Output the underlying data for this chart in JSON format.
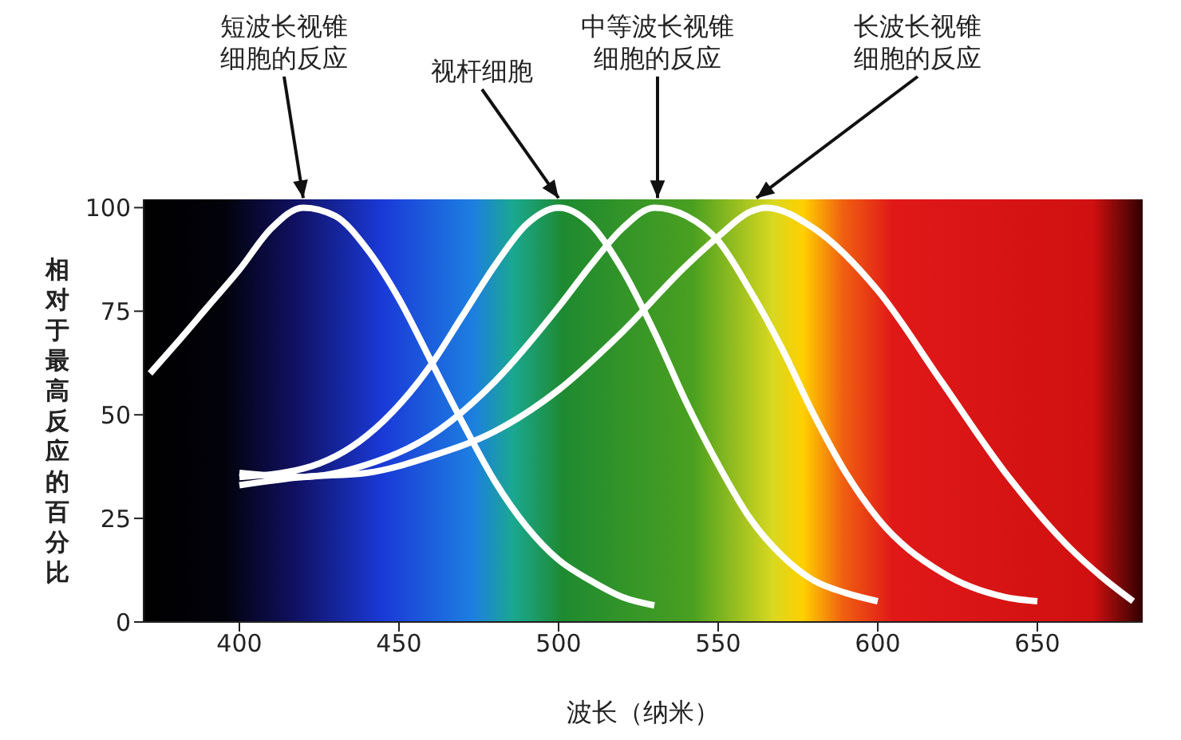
{
  "chart_data": {
    "type": "line",
    "xlabel": "波长（纳米）",
    "ylabel": "相对于最高反应的百分比",
    "xlim": [
      370,
      683
    ],
    "ylim": [
      0,
      102
    ],
    "xticks": [
      400,
      450,
      500,
      550,
      600,
      650
    ],
    "yticks": [
      0,
      25,
      50,
      75,
      100
    ],
    "grid": false,
    "legend": false,
    "marker": "none",
    "line_style": "solid",
    "series": [
      {
        "color": "#ffffff",
        "x": [
          372,
          380,
          390,
          400,
          410,
          420,
          430,
          440,
          450,
          460,
          470,
          480,
          490,
          500,
          510,
          520,
          530
        ],
        "values": [
          60,
          67,
          76,
          85,
          95,
          100,
          98,
          90,
          78,
          63,
          48,
          34,
          23,
          15,
          10,
          6,
          4
        ]
      },
      {
        "color": "#ffffff",
        "x": [
          400,
          420,
          440,
          460,
          470,
          480,
          490,
          500,
          510,
          520,
          530,
          540,
          550,
          560,
          570,
          580,
          590,
          600
        ],
        "values": [
          35,
          37,
          45,
          62,
          74,
          86,
          96,
          100,
          96,
          85,
          70,
          53,
          38,
          25,
          16,
          10,
          7,
          5
        ]
      },
      {
        "color": "#ffffff",
        "x": [
          400,
          420,
          440,
          460,
          480,
          500,
          510,
          520,
          530,
          540,
          550,
          560,
          570,
          580,
          590,
          600,
          620,
          640,
          650
        ],
        "values": [
          36,
          35,
          38,
          45,
          58,
          76,
          86,
          95,
          100,
          98,
          92,
          80,
          66,
          50,
          36,
          25,
          12,
          6,
          5
        ]
      },
      {
        "color": "#ffffff",
        "x": [
          400,
          420,
          440,
          460,
          480,
          500,
          520,
          540,
          550,
          560,
          565,
          580,
          600,
          620,
          640,
          660,
          670,
          680
        ],
        "values": [
          33,
          35,
          36,
          40,
          46,
          56,
          70,
          86,
          93,
          99,
          100,
          95,
          80,
          58,
          36,
          18,
          11,
          5
        ]
      }
    ],
    "annotations": [
      {
        "text": "短波长视锥细胞的反应",
        "x": 420,
        "y": 100
      },
      {
        "text": "视杆细胞",
        "x": 500,
        "y": 100
      },
      {
        "text": "中等波长视锥细胞的反应",
        "x": 531,
        "y": 100
      },
      {
        "text": "长波长视锥细胞的反应",
        "x": 562,
        "y": 100
      }
    ]
  }
}
